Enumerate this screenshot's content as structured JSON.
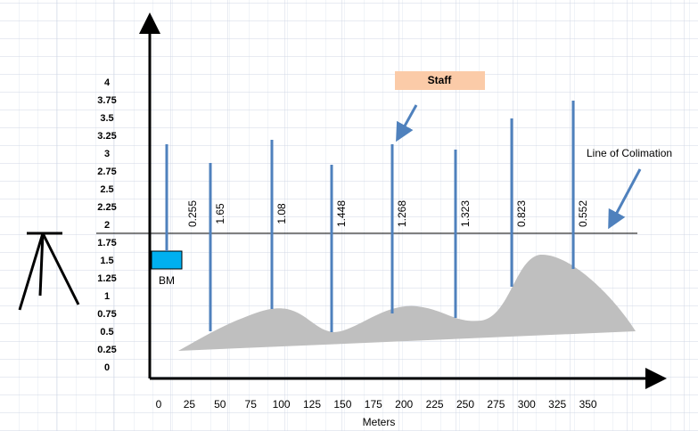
{
  "y_axis_labels": [
    "4",
    "3.75",
    "3.5",
    "3.25",
    "3",
    "2.75",
    "2.5",
    "2.25",
    "2",
    "1.75",
    "1.5",
    "1.25",
    "1",
    "0.75",
    "0.5",
    "0.25",
    "0"
  ],
  "x_axis_labels": [
    "0",
    "25",
    "50",
    "75",
    "100",
    "125",
    "150",
    "175",
    "200",
    "225",
    "250",
    "275",
    "300",
    "325",
    "350"
  ],
  "x_axis_title": "Meters",
  "staff_label": "Staff",
  "line_label": "Line of Colimation",
  "benchmark_label": "BM",
  "readings": [
    "0.255",
    "1.65",
    "1.08",
    "1.448",
    "1.268",
    "1.323",
    "0.823",
    "0.552"
  ]
}
